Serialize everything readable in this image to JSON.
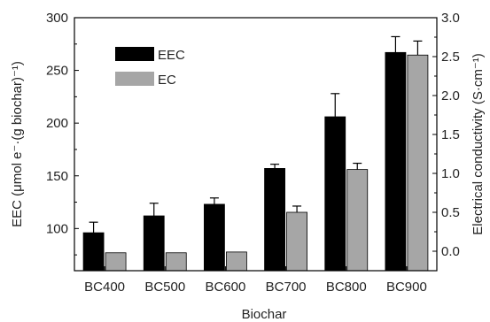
{
  "chart_data": {
    "type": "bar",
    "xlabel": "Biochar",
    "ylabel_left": "EEC (μmol e⁻·(g biochar)⁻¹)",
    "ylabel_right": "Electrical conductivity (S·cm⁻¹)",
    "categories": [
      "BC400",
      "BC500",
      "BC600",
      "BC700",
      "BC800",
      "BC900"
    ],
    "ylim_left": [
      60,
      300
    ],
    "yticks_left": [
      "100",
      "150",
      "200",
      "250",
      "300"
    ],
    "ylim_right": [
      -0.25,
      3.0
    ],
    "yticks_right": [
      "0.0",
      "0.5",
      "1.0",
      "1.5",
      "2.0",
      "2.5",
      "3.0"
    ],
    "legend_position": "top-left",
    "grid": false,
    "series": [
      {
        "name": "EEC",
        "axis": "left",
        "color": "#000000",
        "values": [
          96,
          112,
          123,
          157,
          206,
          267
        ],
        "errors": [
          10,
          12,
          6,
          4,
          22,
          15
        ]
      },
      {
        "name": "EC",
        "axis": "right",
        "color": "#a6a6a6",
        "values": [
          -0.02,
          -0.02,
          -0.01,
          0.5,
          1.05,
          2.52
        ],
        "errors": [
          0,
          0,
          0,
          0.08,
          0.08,
          0.18
        ]
      }
    ]
  }
}
